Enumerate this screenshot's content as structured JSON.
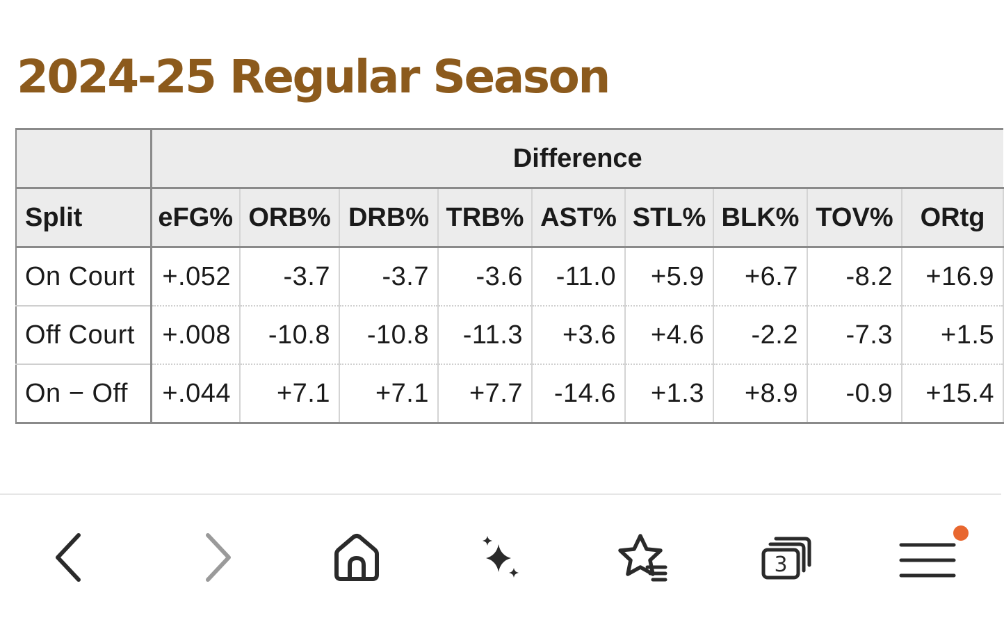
{
  "page": {
    "title": "2024-25 Regular Season"
  },
  "table": {
    "group_header": "Difference",
    "columns": [
      "Split",
      "eFG%",
      "ORB%",
      "DRB%",
      "TRB%",
      "AST%",
      "STL%",
      "BLK%",
      "TOV%",
      "ORtg"
    ],
    "rows": [
      {
        "split": "On Court",
        "values": [
          "+.052",
          "-3.7",
          "-3.7",
          "-3.6",
          "-11.0",
          "+5.9",
          "+6.7",
          "-8.2",
          "+16.9"
        ]
      },
      {
        "split": "Off Court",
        "values": [
          "+.008",
          "-10.8",
          "-10.8",
          "-11.3",
          "+3.6",
          "+4.6",
          "-2.2",
          "-7.3",
          "+1.5"
        ]
      },
      {
        "split": "On − Off",
        "values": [
          "+.044",
          "+7.1",
          "+7.1",
          "+7.7",
          "-14.6",
          "+1.3",
          "+8.9",
          "-0.9",
          "+15.4"
        ]
      }
    ]
  },
  "browser_bar": {
    "icons": [
      "back-icon",
      "forward-icon",
      "home-icon",
      "sparkle-icon",
      "bookmark-star-icon",
      "tabs-icon",
      "menu-icon"
    ],
    "tab_count": "3",
    "notification_color": "#e8672f",
    "accent": "#8c5a1c"
  }
}
